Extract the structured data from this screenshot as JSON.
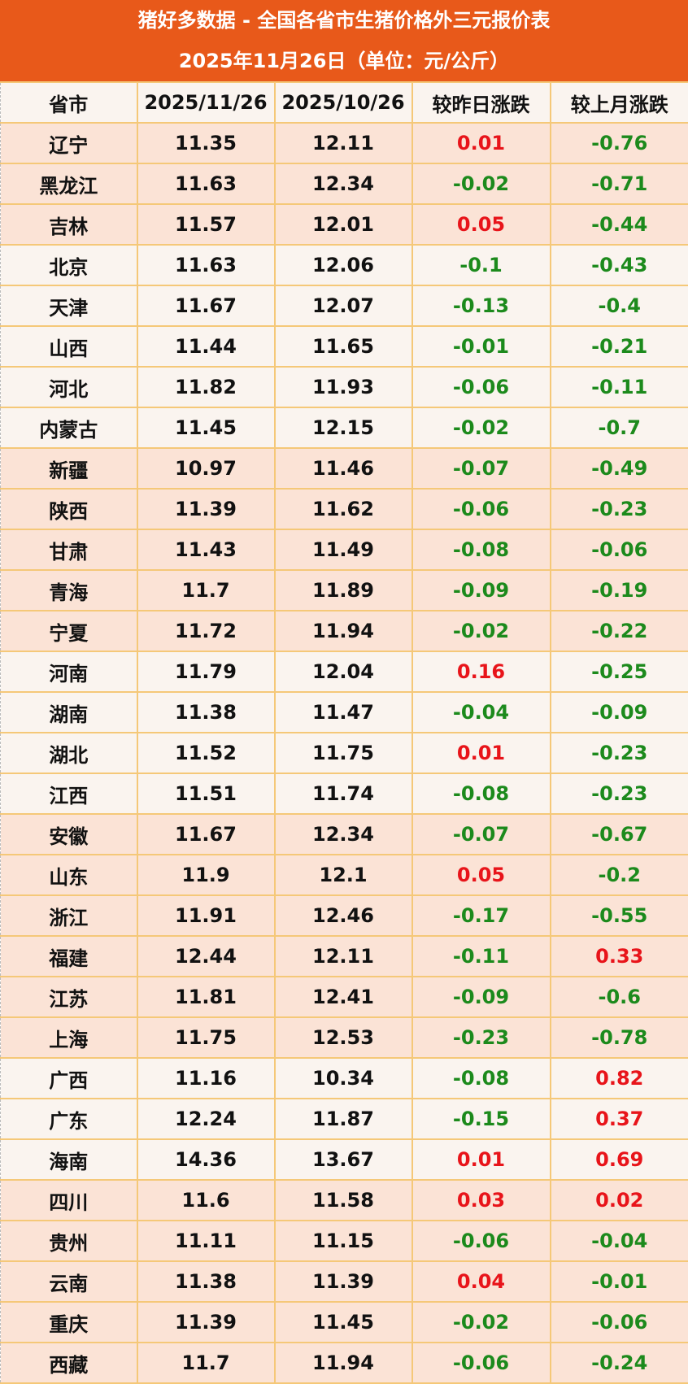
{
  "title": {
    "line1": "猪好多数据 - 全国各省市生猪价格外三元报价表",
    "line2": "2025年11月26日（单位：元/公斤）"
  },
  "colors": {
    "header_bg": "#e8591a",
    "rise": "#e8141a",
    "fall": "#1c8a1c",
    "row_peach": "#fbe3d6",
    "row_light": "#faf4ef"
  },
  "columns": [
    "省市",
    "2025/11/26",
    "2025/10/26",
    "较昨日涨跌",
    "较上月涨跌"
  ],
  "rows": [
    {
      "province": "辽宁",
      "today": "11.35",
      "last_month": "12.11",
      "day_change": "0.01",
      "month_change": "-0.76",
      "shade": "peach"
    },
    {
      "province": "黑龙江",
      "today": "11.63",
      "last_month": "12.34",
      "day_change": "-0.02",
      "month_change": "-0.71",
      "shade": "peach"
    },
    {
      "province": "吉林",
      "today": "11.57",
      "last_month": "12.01",
      "day_change": "0.05",
      "month_change": "-0.44",
      "shade": "peach"
    },
    {
      "province": "北京",
      "today": "11.63",
      "last_month": "12.06",
      "day_change": "-0.1",
      "month_change": "-0.43",
      "shade": "light"
    },
    {
      "province": "天津",
      "today": "11.67",
      "last_month": "12.07",
      "day_change": "-0.13",
      "month_change": "-0.4",
      "shade": "light"
    },
    {
      "province": "山西",
      "today": "11.44",
      "last_month": "11.65",
      "day_change": "-0.01",
      "month_change": "-0.21",
      "shade": "light"
    },
    {
      "province": "河北",
      "today": "11.82",
      "last_month": "11.93",
      "day_change": "-0.06",
      "month_change": "-0.11",
      "shade": "light"
    },
    {
      "province": "内蒙古",
      "today": "11.45",
      "last_month": "12.15",
      "day_change": "-0.02",
      "month_change": "-0.7",
      "shade": "light"
    },
    {
      "province": "新疆",
      "today": "10.97",
      "last_month": "11.46",
      "day_change": "-0.07",
      "month_change": "-0.49",
      "shade": "peach"
    },
    {
      "province": "陕西",
      "today": "11.39",
      "last_month": "11.62",
      "day_change": "-0.06",
      "month_change": "-0.23",
      "shade": "peach"
    },
    {
      "province": "甘肃",
      "today": "11.43",
      "last_month": "11.49",
      "day_change": "-0.08",
      "month_change": "-0.06",
      "shade": "peach"
    },
    {
      "province": "青海",
      "today": "11.7",
      "last_month": "11.89",
      "day_change": "-0.09",
      "month_change": "-0.19",
      "shade": "peach"
    },
    {
      "province": "宁夏",
      "today": "11.72",
      "last_month": "11.94",
      "day_change": "-0.02",
      "month_change": "-0.22",
      "shade": "peach"
    },
    {
      "province": "河南",
      "today": "11.79",
      "last_month": "12.04",
      "day_change": "0.16",
      "month_change": "-0.25",
      "shade": "light"
    },
    {
      "province": "湖南",
      "today": "11.38",
      "last_month": "11.47",
      "day_change": "-0.04",
      "month_change": "-0.09",
      "shade": "light"
    },
    {
      "province": "湖北",
      "today": "11.52",
      "last_month": "11.75",
      "day_change": "0.01",
      "month_change": "-0.23",
      "shade": "light"
    },
    {
      "province": "江西",
      "today": "11.51",
      "last_month": "11.74",
      "day_change": "-0.08",
      "month_change": "-0.23",
      "shade": "light"
    },
    {
      "province": "安徽",
      "today": "11.67",
      "last_month": "12.34",
      "day_change": "-0.07",
      "month_change": "-0.67",
      "shade": "peach"
    },
    {
      "province": "山东",
      "today": "11.9",
      "last_month": "12.1",
      "day_change": "0.05",
      "month_change": "-0.2",
      "shade": "peach"
    },
    {
      "province": "浙江",
      "today": "11.91",
      "last_month": "12.46",
      "day_change": "-0.17",
      "month_change": "-0.55",
      "shade": "peach"
    },
    {
      "province": "福建",
      "today": "12.44",
      "last_month": "12.11",
      "day_change": "-0.11",
      "month_change": "0.33",
      "shade": "peach"
    },
    {
      "province": "江苏",
      "today": "11.81",
      "last_month": "12.41",
      "day_change": "-0.09",
      "month_change": "-0.6",
      "shade": "peach"
    },
    {
      "province": "上海",
      "today": "11.75",
      "last_month": "12.53",
      "day_change": "-0.23",
      "month_change": "-0.78",
      "shade": "peach"
    },
    {
      "province": "广西",
      "today": "11.16",
      "last_month": "10.34",
      "day_change": "-0.08",
      "month_change": "0.82",
      "shade": "light"
    },
    {
      "province": "广东",
      "today": "12.24",
      "last_month": "11.87",
      "day_change": "-0.15",
      "month_change": "0.37",
      "shade": "light"
    },
    {
      "province": "海南",
      "today": "14.36",
      "last_month": "13.67",
      "day_change": "0.01",
      "month_change": "0.69",
      "shade": "light"
    },
    {
      "province": "四川",
      "today": "11.6",
      "last_month": "11.58",
      "day_change": "0.03",
      "month_change": "0.02",
      "shade": "peach"
    },
    {
      "province": "贵州",
      "today": "11.11",
      "last_month": "11.15",
      "day_change": "-0.06",
      "month_change": "-0.04",
      "shade": "peach"
    },
    {
      "province": "云南",
      "today": "11.38",
      "last_month": "11.39",
      "day_change": "0.04",
      "month_change": "-0.01",
      "shade": "peach"
    },
    {
      "province": "重庆",
      "today": "11.39",
      "last_month": "11.45",
      "day_change": "-0.02",
      "month_change": "-0.06",
      "shade": "peach"
    },
    {
      "province": "西藏",
      "today": "11.7",
      "last_month": "11.94",
      "day_change": "-0.06",
      "month_change": "-0.24",
      "shade": "peach"
    }
  ]
}
